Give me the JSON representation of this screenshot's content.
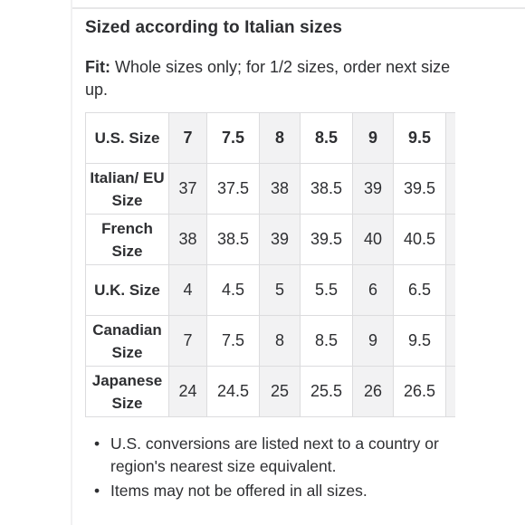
{
  "heading": "Sized according to Italian sizes",
  "fit": {
    "label": "Fit:",
    "text": " Whole sizes only; for 1/2 sizes, order next size up."
  },
  "table": {
    "rows": [
      {
        "header": "U.S. Size",
        "values": [
          "7",
          "7.5",
          "8",
          "8.5",
          "9",
          "9.5"
        ]
      },
      {
        "header": "Italian/ EU Size",
        "values": [
          "37",
          "37.5",
          "38",
          "38.5",
          "39",
          "39.5"
        ]
      },
      {
        "header": "French Size",
        "values": [
          "38",
          "38.5",
          "39",
          "39.5",
          "40",
          "40.5"
        ]
      },
      {
        "header": "U.K. Size",
        "values": [
          "4",
          "4.5",
          "5",
          "5.5",
          "6",
          "6.5"
        ]
      },
      {
        "header": "Canadian Size",
        "values": [
          "7",
          "7.5",
          "8",
          "8.5",
          "9",
          "9.5"
        ]
      },
      {
        "header": "Japanese Size",
        "values": [
          "24",
          "24.5",
          "25",
          "25.5",
          "26",
          "26.5"
        ]
      }
    ]
  },
  "notes": [
    "U.S. conversions are listed next to a country or region's nearest size equivalent.",
    "Items may not be offered in all sizes."
  ],
  "bullet_glyph": "•",
  "colors": {
    "text": "#2e2f32",
    "border": "#dcdcde",
    "shade": "#f2f2f3"
  }
}
